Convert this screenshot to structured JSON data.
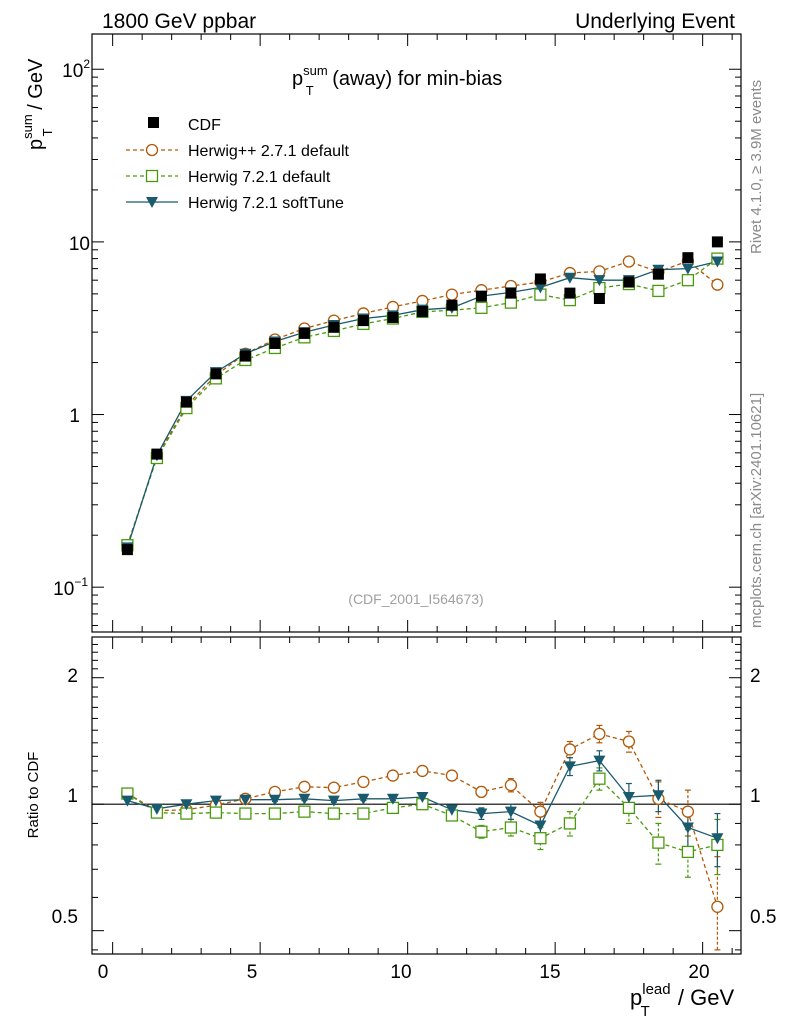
{
  "header": {
    "left": "1800 GeV ppbar",
    "right": "Underlying Event"
  },
  "side_labels": {
    "rivet": "Rivet 4.1.0, ≥ 3.9M events",
    "mcplots": "mcplots.cern.ch [arXiv:2401.10621]"
  },
  "chart_data": [
    {
      "type": "line",
      "name": "main",
      "title": {
        "base": "p",
        "sup": "sum",
        "sub": "T",
        "rest": " (away) for min-bias"
      },
      "ylabel": {
        "base": "p",
        "sup": "sum",
        "sub": "T",
        "rest": " / GeV"
      },
      "yscale": "log",
      "ylim": [
        0.055,
        160
      ],
      "ytick_labels": {
        "t100": {
          "base": "10",
          "exp": "2"
        },
        "t10": "10",
        "t1": "1",
        "t01": {
          "base": "10",
          "exp": "−1"
        }
      },
      "watermark": "(CDF_2001_I564673)",
      "legend_position": "top-left",
      "x": [
        0.5,
        1.5,
        2.5,
        3.5,
        4.5,
        5.5,
        6.5,
        7.5,
        8.5,
        9.5,
        10.5,
        11.5,
        12.5,
        13.5,
        14.5,
        15.5,
        16.5,
        17.5,
        18.5,
        19.5,
        20.5
      ],
      "series": [
        {
          "name": "CDF",
          "color": "#000000",
          "values": [
            0.165,
            0.59,
            1.18,
            1.72,
            2.18,
            2.58,
            2.95,
            3.2,
            3.5,
            3.65,
            3.95,
            4.3,
            4.85,
            5.05,
            6.1,
            5.05,
            4.7,
            5.85,
            6.5,
            8.1,
            10.0
          ]
        },
        {
          "name": "Herwig++ 2.7.1 default",
          "color": "#b35806",
          "values": [
            0.175,
            0.57,
            1.12,
            1.69,
            2.25,
            2.72,
            3.15,
            3.5,
            3.85,
            4.2,
            4.55,
            4.95,
            5.25,
            5.55,
            5.85,
            6.6,
            6.75,
            7.7,
            6.7,
            7.75,
            5.65
          ]
        },
        {
          "name": "Herwig 7.2.1 default",
          "color": "#4a9a0e",
          "values": [
            0.175,
            0.56,
            1.09,
            1.62,
            2.07,
            2.43,
            2.8,
            3.05,
            3.35,
            3.6,
            3.93,
            4.02,
            4.15,
            4.45,
            4.95,
            4.6,
            5.4,
            5.7,
            5.2,
            6.0,
            8.0
          ]
        },
        {
          "name": "Herwig 7.2.1 softTune",
          "color": "#1a5a6e",
          "values": [
            0.17,
            0.58,
            1.2,
            1.76,
            2.25,
            2.65,
            3.0,
            3.3,
            3.6,
            3.75,
            4.05,
            4.15,
            4.85,
            5.1,
            5.45,
            6.2,
            6.0,
            6.0,
            6.9,
            7.0,
            7.7
          ]
        }
      ]
    },
    {
      "type": "line",
      "name": "ratio",
      "ylabel": "Ratio to CDF",
      "yscale": "log",
      "ylim": [
        0.44,
        2.5
      ],
      "ytick_labels": {
        "t2": "2",
        "t1": "1",
        "t05": "0.5"
      },
      "xlabel": {
        "base": "p",
        "sup": "lead",
        "sub": "T",
        "rest": " / GeV"
      },
      "xlim": [
        -0.7,
        21.3
      ],
      "xtick_labels": [
        "0",
        "5",
        "10",
        "15",
        "20"
      ],
      "series": [
        {
          "name": "Herwig++ 2.7.1 default",
          "values": [
            1.06,
            0.965,
            0.97,
            0.995,
            1.03,
            1.07,
            1.1,
            1.095,
            1.13,
            1.17,
            1.2,
            1.17,
            1.07,
            1.11,
            0.96,
            1.35,
            1.47,
            1.41,
            1.03,
            0.96,
            0.57
          ],
          "errors": [
            0.02,
            0.01,
            0.01,
            0.01,
            0.01,
            0.01,
            0.01,
            0.01,
            0.01,
            0.01,
            0.02,
            0.02,
            0.03,
            0.04,
            0.05,
            0.06,
            0.07,
            0.08,
            0.1,
            0.12,
            0.18
          ]
        },
        {
          "name": "Herwig 7.2.1 default",
          "values": [
            1.06,
            0.955,
            0.95,
            0.955,
            0.95,
            0.95,
            0.96,
            0.95,
            0.95,
            0.98,
            1.0,
            0.94,
            0.86,
            0.88,
            0.83,
            0.9,
            1.15,
            0.98,
            0.81,
            0.77,
            0.8
          ],
          "errors": [
            0.02,
            0.01,
            0.01,
            0.01,
            0.01,
            0.01,
            0.01,
            0.01,
            0.01,
            0.01,
            0.02,
            0.02,
            0.03,
            0.04,
            0.05,
            0.06,
            0.07,
            0.08,
            0.09,
            0.1,
            0.12
          ]
        },
        {
          "name": "Herwig 7.2.1 softTune",
          "values": [
            1.02,
            0.975,
            1.0,
            1.02,
            1.025,
            1.025,
            1.03,
            1.02,
            1.03,
            1.03,
            1.04,
            0.97,
            0.95,
            0.96,
            0.89,
            1.23,
            1.27,
            1.04,
            1.05,
            0.88,
            0.83
          ],
          "errors": [
            0.02,
            0.01,
            0.01,
            0.01,
            0.01,
            0.01,
            0.01,
            0.01,
            0.01,
            0.01,
            0.02,
            0.02,
            0.03,
            0.04,
            0.05,
            0.06,
            0.07,
            0.08,
            0.09,
            0.1,
            0.12
          ]
        }
      ]
    }
  ]
}
